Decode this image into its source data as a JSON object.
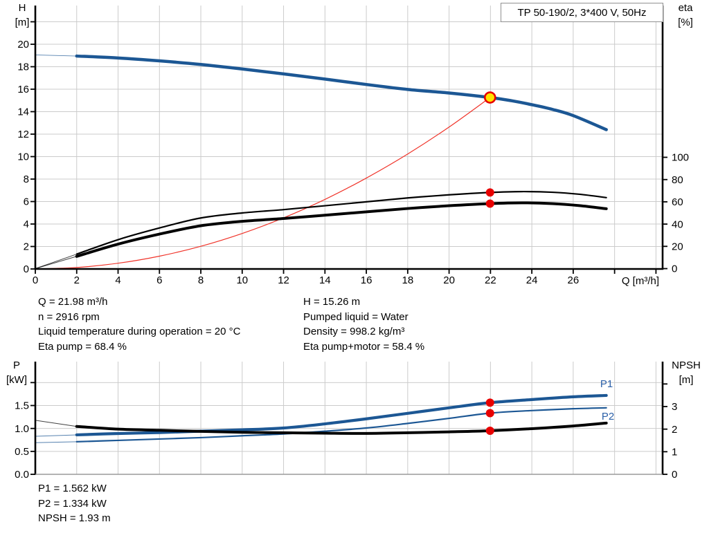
{
  "colors": {
    "curve_blue": "#1c5794",
    "curve_black": "#000000",
    "system_red": "#f03228",
    "marker_red": "#e80000",
    "duty_yellow": "#ffe400",
    "grid": "#cbcbcb",
    "axis_black": "#000000",
    "bottom_border_gray": "#9a9a9a",
    "label_blue": "#2a5fa8",
    "box_border_gray": "#8f8f8f"
  },
  "info_top_left": [
    "Q = 21.98 m³/h",
    "n = 2916 rpm",
    "Liquid temperature during operation = 20 °C",
    "Eta pump = 68.4 %"
  ],
  "info_top_right": [
    "H = 15.26 m",
    "Pumped liquid = Water",
    "Density = 998.2 kg/m³",
    "Eta pump+motor = 58.4 %"
  ],
  "info_bottom": [
    "P1 = 1.562 kW",
    "P2 = 1.334 kW",
    "NPSH = 1.93 m"
  ],
  "chart_data": [
    {
      "type": "line",
      "title": "TP 50-190/2, 3*400 V, 50Hz",
      "x_axis": {
        "label": "Q [m³/h]",
        "min": 0,
        "max": 30.3,
        "tick_labels": [
          0,
          2,
          4,
          6,
          8,
          10,
          12,
          14,
          16,
          18,
          20,
          22,
          24,
          26
        ],
        "extra_ticks": [
          28,
          30
        ],
        "decimals": 0
      },
      "left_axis": {
        "label": "H",
        "unit": "[m]",
        "min": 0,
        "max": 23.4,
        "tick_labels": [
          0,
          2,
          4,
          6,
          8,
          10,
          12,
          14,
          16,
          18,
          20
        ],
        "extra_ticks": [
          22
        ],
        "decimals": 0
      },
      "right_axis": {
        "label": "eta",
        "unit": "[%]",
        "min": 0,
        "max": 236,
        "tick_labels": [
          0,
          20,
          40,
          60,
          80,
          100
        ],
        "extra_ticks": [],
        "decimals": 0
      },
      "grid": true,
      "legend_position": "none",
      "series": [
        {
          "name": "system-curve",
          "axis": "left",
          "color": "#f03228",
          "width": 1.2,
          "points": [
            [
              0,
              0
            ],
            [
              2,
              0.13
            ],
            [
              4,
              0.51
            ],
            [
              6,
              1.14
            ],
            [
              8,
              2.02
            ],
            [
              10,
              3.16
            ],
            [
              12,
              4.55
            ],
            [
              14,
              6.19
            ],
            [
              16,
              8.09
            ],
            [
              18,
              10.23
            ],
            [
              20,
              12.63
            ],
            [
              21.98,
              15.26
            ]
          ]
        },
        {
          "name": "eta-pump-curve",
          "axis": "right",
          "color": "#000000",
          "width": 2.2,
          "thin_break": 2,
          "points": [
            [
              0,
              0
            ],
            [
              2,
              13
            ],
            [
              4,
              26
            ],
            [
              6,
              36.5
            ],
            [
              8,
              45.5
            ],
            [
              10,
              50
            ],
            [
              12,
              53
            ],
            [
              14,
              56.5
            ],
            [
              16,
              60
            ],
            [
              18,
              63.5
            ],
            [
              20,
              66.3
            ],
            [
              21.98,
              68.4
            ],
            [
              23.5,
              69.2
            ],
            [
              25,
              68.6
            ],
            [
              26.3,
              66.8
            ],
            [
              27.6,
              63.8
            ]
          ]
        },
        {
          "name": "eta-pump-motor-curve",
          "axis": "right",
          "color": "#000000",
          "width": 4,
          "thin_break": 2,
          "points": [
            [
              0,
              0
            ],
            [
              2,
              11
            ],
            [
              4,
              22
            ],
            [
              6,
              31
            ],
            [
              8,
              38.5
            ],
            [
              10,
              42.5
            ],
            [
              12,
              45
            ],
            [
              14,
              48
            ],
            [
              16,
              51
            ],
            [
              18,
              54
            ],
            [
              20,
              56.5
            ],
            [
              21.98,
              58.4
            ],
            [
              23.5,
              59.1
            ],
            [
              25,
              58.4
            ],
            [
              26.3,
              56.6
            ],
            [
              27.6,
              53.8
            ]
          ]
        },
        {
          "name": "pump-curve",
          "axis": "left",
          "color": "#1c5794",
          "width": 4.5,
          "thin_break": 2,
          "points": [
            [
              0,
              19.05
            ],
            [
              2,
              18.95
            ],
            [
              4,
              18.78
            ],
            [
              6,
              18.52
            ],
            [
              8,
              18.2
            ],
            [
              10,
              17.8
            ],
            [
              12,
              17.36
            ],
            [
              14,
              16.9
            ],
            [
              16,
              16.42
            ],
            [
              18,
              15.98
            ],
            [
              20,
              15.66
            ],
            [
              21.98,
              15.26
            ],
            [
              23,
              14.98
            ],
            [
              24,
              14.62
            ],
            [
              25,
              14.2
            ],
            [
              26,
              13.65
            ],
            [
              27.6,
              12.4
            ]
          ]
        }
      ],
      "markers": [
        {
          "name": "eta-pump-point",
          "kind": "dot",
          "axis": "right",
          "q": 21.98,
          "value": 68.4
        },
        {
          "name": "eta-pump-motor-point",
          "kind": "dot",
          "axis": "right",
          "q": 21.98,
          "value": 58.4
        },
        {
          "name": "duty-point",
          "kind": "duty",
          "axis": "left",
          "q": 21.98,
          "value": 15.26
        }
      ]
    },
    {
      "type": "line",
      "title": "",
      "x_axis": {
        "label": "",
        "min": 0,
        "max": 30.3,
        "tick_labels": [],
        "extra_ticks": [
          2,
          4,
          6,
          8,
          10,
          12,
          14,
          16,
          18,
          20,
          22,
          24,
          26,
          28,
          30
        ],
        "decimals": 0
      },
      "left_axis": {
        "label": "P",
        "unit": "[kW]",
        "min": 0,
        "max": 2.46,
        "tick_labels": [
          0,
          0.5,
          1,
          1.5
        ],
        "extra_ticks": [
          2
        ],
        "decimals": 1
      },
      "right_axis": {
        "label": "NPSH",
        "unit": "[m]",
        "min": 0,
        "max": 5,
        "tick_labels": [
          0,
          1,
          2,
          3
        ],
        "extra_ticks": [
          4
        ],
        "decimals": 0
      },
      "grid": true,
      "legend_position": "inline-right",
      "series": [
        {
          "name": "p1-curve",
          "label": "P1",
          "axis": "left",
          "color": "#1c5794",
          "width": 4.2,
          "thin_break": 2,
          "points": [
            [
              0,
              0.83
            ],
            [
              2,
              0.86
            ],
            [
              4,
              0.89
            ],
            [
              6,
              0.91
            ],
            [
              8,
              0.94
            ],
            [
              10,
              0.97
            ],
            [
              12,
              1.01
            ],
            [
              14,
              1.1
            ],
            [
              16,
              1.21
            ],
            [
              18,
              1.33
            ],
            [
              20,
              1.45
            ],
            [
              21.98,
              1.562
            ],
            [
              24,
              1.63
            ],
            [
              26,
              1.69
            ],
            [
              27.6,
              1.72
            ]
          ]
        },
        {
          "name": "p2-curve",
          "label": "P2",
          "axis": "left",
          "color": "#1c5794",
          "width": 2.2,
          "thin_break": 2,
          "points": [
            [
              0,
              0.69
            ],
            [
              2,
              0.71
            ],
            [
              4,
              0.74
            ],
            [
              6,
              0.77
            ],
            [
              8,
              0.8
            ],
            [
              10,
              0.84
            ],
            [
              12,
              0.88
            ],
            [
              14,
              0.94
            ],
            [
              16,
              1.01
            ],
            [
              18,
              1.11
            ],
            [
              20,
              1.22
            ],
            [
              21.98,
              1.334
            ],
            [
              24,
              1.39
            ],
            [
              26,
              1.43
            ],
            [
              27.6,
              1.45
            ]
          ]
        },
        {
          "name": "npsh-curve",
          "axis": "right",
          "color": "#000000",
          "width": 4,
          "thin_break": 2,
          "points": [
            [
              0,
              2.39
            ],
            [
              2,
              2.12
            ],
            [
              4,
              2.0
            ],
            [
              6,
              1.95
            ],
            [
              8,
              1.9
            ],
            [
              10,
              1.86
            ],
            [
              12,
              1.84
            ],
            [
              14,
              1.82
            ],
            [
              16,
              1.81
            ],
            [
              18,
              1.84
            ],
            [
              20,
              1.88
            ],
            [
              21.98,
              1.93
            ],
            [
              24,
              2.02
            ],
            [
              26,
              2.14
            ],
            [
              27.6,
              2.27
            ]
          ]
        }
      ],
      "markers": [
        {
          "name": "p1-point",
          "kind": "dot",
          "axis": "left",
          "q": 21.98,
          "value": 1.562
        },
        {
          "name": "p2-point",
          "kind": "dot",
          "axis": "left",
          "q": 21.98,
          "value": 1.334
        },
        {
          "name": "npsh-point",
          "kind": "dot",
          "axis": "right",
          "q": 21.98,
          "value": 1.93
        }
      ]
    }
  ]
}
